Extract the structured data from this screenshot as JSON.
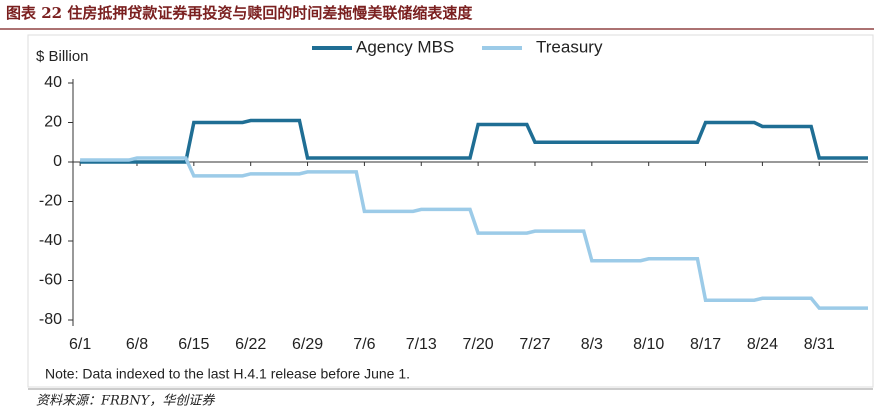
{
  "title": "图表 22 住房抵押贷款证券再投资与赎回的时间差拖慢美联储缩表速度",
  "note": "Note: Data indexed to the last H.4.1 release before June 1.",
  "source": "资料来源：FRBNY，华创证券",
  "chart_data": {
    "type": "line",
    "y_label": "$ Billion",
    "xlim": [
      -1,
      97
    ],
    "xticks": [
      {
        "value": 0,
        "label": "6/1"
      },
      {
        "value": 7,
        "label": "6/8"
      },
      {
        "value": 14,
        "label": "6/15"
      },
      {
        "value": 21,
        "label": "6/22"
      },
      {
        "value": 28,
        "label": "6/29"
      },
      {
        "value": 35,
        "label": "7/6"
      },
      {
        "value": 42,
        "label": "7/13"
      },
      {
        "value": 49,
        "label": "7/20"
      },
      {
        "value": 56,
        "label": "7/27"
      },
      {
        "value": 63,
        "label": "8/3"
      },
      {
        "value": 70,
        "label": "8/10"
      },
      {
        "value": 77,
        "label": "8/17"
      },
      {
        "value": 84,
        "label": "8/24"
      },
      {
        "value": 91,
        "label": "8/31"
      }
    ],
    "ylim": [
      -80,
      40
    ],
    "yticks": [
      -80,
      -60,
      -40,
      -20,
      0,
      20,
      40
    ],
    "series": [
      {
        "name": "Agency MBS",
        "color": "#1f6e94",
        "x": [
          0,
          13,
          14,
          20,
          21,
          27,
          28,
          48,
          49,
          55,
          56,
          76,
          77,
          83,
          84,
          90,
          91,
          97
        ],
        "values": [
          0,
          0,
          20,
          20,
          21,
          21,
          2,
          2,
          19,
          19,
          10,
          10,
          20,
          20,
          18,
          18,
          2,
          2
        ]
      },
      {
        "name": "Treasury",
        "color": "#9ccbe8",
        "x": [
          0,
          6,
          7,
          13,
          14,
          20,
          21,
          27,
          28,
          34,
          35,
          41,
          42,
          48,
          49,
          55,
          56,
          62,
          63,
          69,
          70,
          76,
          77,
          83,
          84,
          90,
          91,
          97
        ],
        "values": [
          1,
          1,
          2,
          2,
          -7,
          -7,
          -6,
          -6,
          -5,
          -5,
          -25,
          -25,
          -24,
          -24,
          -36,
          -36,
          -35,
          -35,
          -50,
          -50,
          -49,
          -49,
          -70,
          -70,
          -69,
          -69,
          -74,
          -74
        ]
      }
    ]
  }
}
